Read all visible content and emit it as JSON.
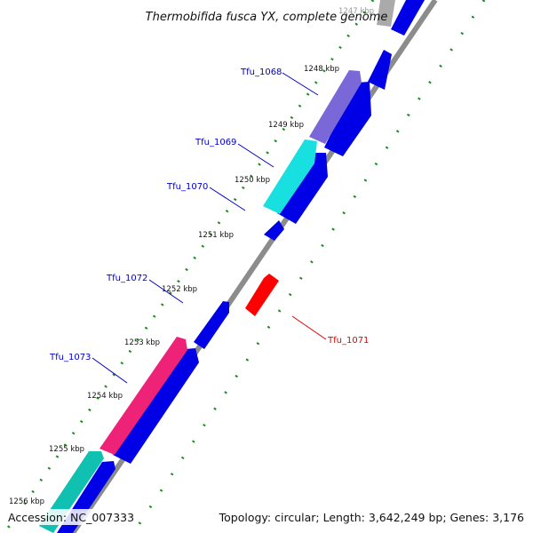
{
  "header": {
    "title": "Thermobifida fusca YX, complete genome",
    "partial_top_label": "1247 kbp"
  },
  "footer": {
    "accession": "Accession: NC_007333",
    "summary": "Topology: circular; Length: 3,642,249 bp; Genes: 3,176"
  },
  "colors": {
    "forward_cds": "#0000e6",
    "reverse_cds": "#ff0000",
    "backbone": "#8c8c8c",
    "gc_dots": "#1e8c1e",
    "label_blue": "#0000c8",
    "label_red": "#e60000",
    "tfu_1068": "#7b68d8",
    "tfu_1069": "#19e0e0",
    "tfu_1073_pink": "#ee2277",
    "tfu_1073_teal": "#10c0b0"
  },
  "ticks": [
    {
      "label": "1248 kbp",
      "kbp": 1248
    },
    {
      "label": "1249 kbp",
      "kbp": 1249
    },
    {
      "label": "1250 kbp",
      "kbp": 1250
    },
    {
      "label": "1251 kbp",
      "kbp": 1251
    },
    {
      "label": "1252 kbp",
      "kbp": 1252
    },
    {
      "label": "1253 kbp",
      "kbp": 1253
    },
    {
      "label": "1254 kbp",
      "kbp": 1254
    },
    {
      "label": "1255 kbp",
      "kbp": 1255
    },
    {
      "label": "1256 kbp",
      "kbp": 1256
    }
  ],
  "gene_labels": [
    {
      "label": "Tfu_1068",
      "strand": "forward"
    },
    {
      "label": "Tfu_1069",
      "strand": "forward"
    },
    {
      "label": "Tfu_1070",
      "strand": "forward"
    },
    {
      "label": "Tfu_1072",
      "strand": "forward"
    },
    {
      "label": "Tfu_1073",
      "strand": "forward"
    },
    {
      "label": "Tfu_1071",
      "strand": "reverse"
    }
  ]
}
